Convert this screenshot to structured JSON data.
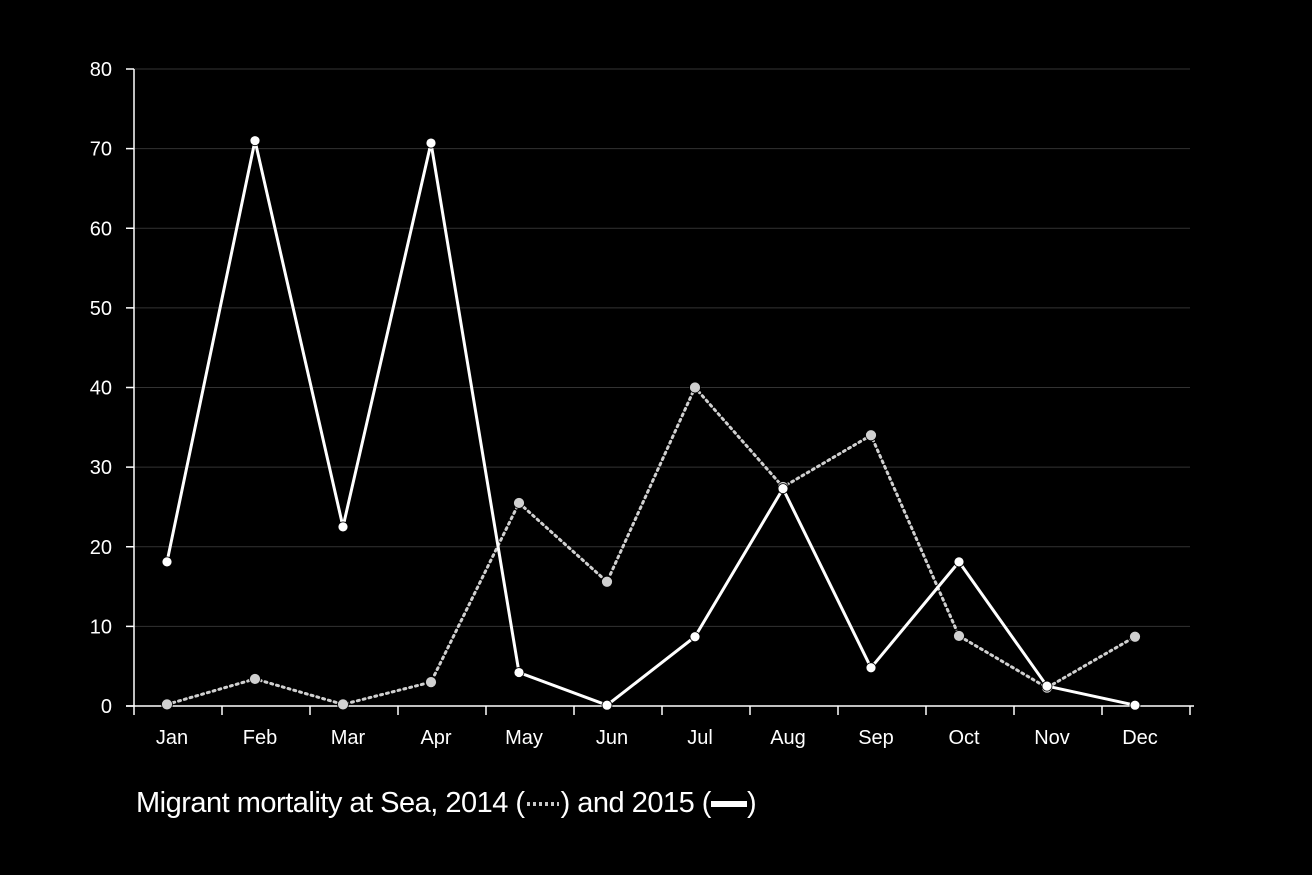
{
  "chart_data": {
    "type": "line",
    "categories": [
      "Jan",
      "Feb",
      "Mar",
      "Apr",
      "May",
      "Jun",
      "Jul",
      "Aug",
      "Sep",
      "Oct",
      "Nov",
      "Dec"
    ],
    "ylim": [
      0,
      80
    ],
    "yticks": [
      0,
      10,
      20,
      30,
      40,
      50,
      60,
      70,
      80
    ],
    "grid": true,
    "series": [
      {
        "year": "2014",
        "line_style": "dotted",
        "color": "#d0d0d0",
        "values": [
          0.2,
          3.4,
          0.2,
          3.0,
          25.5,
          15.6,
          40.0,
          27.5,
          34.0,
          8.8,
          2.3,
          8.7
        ]
      },
      {
        "year": "2015",
        "line_style": "solid",
        "color": "#ffffff",
        "values": [
          18.1,
          71.0,
          22.5,
          70.7,
          4.2,
          0.1,
          8.7,
          27.3,
          4.8,
          18.1,
          2.5,
          0.1
        ]
      }
    ]
  },
  "caption": {
    "prefix": "Migrant mortality at Sea, 2014 (",
    "middle": ") and 2015 (",
    "suffix": ")"
  }
}
